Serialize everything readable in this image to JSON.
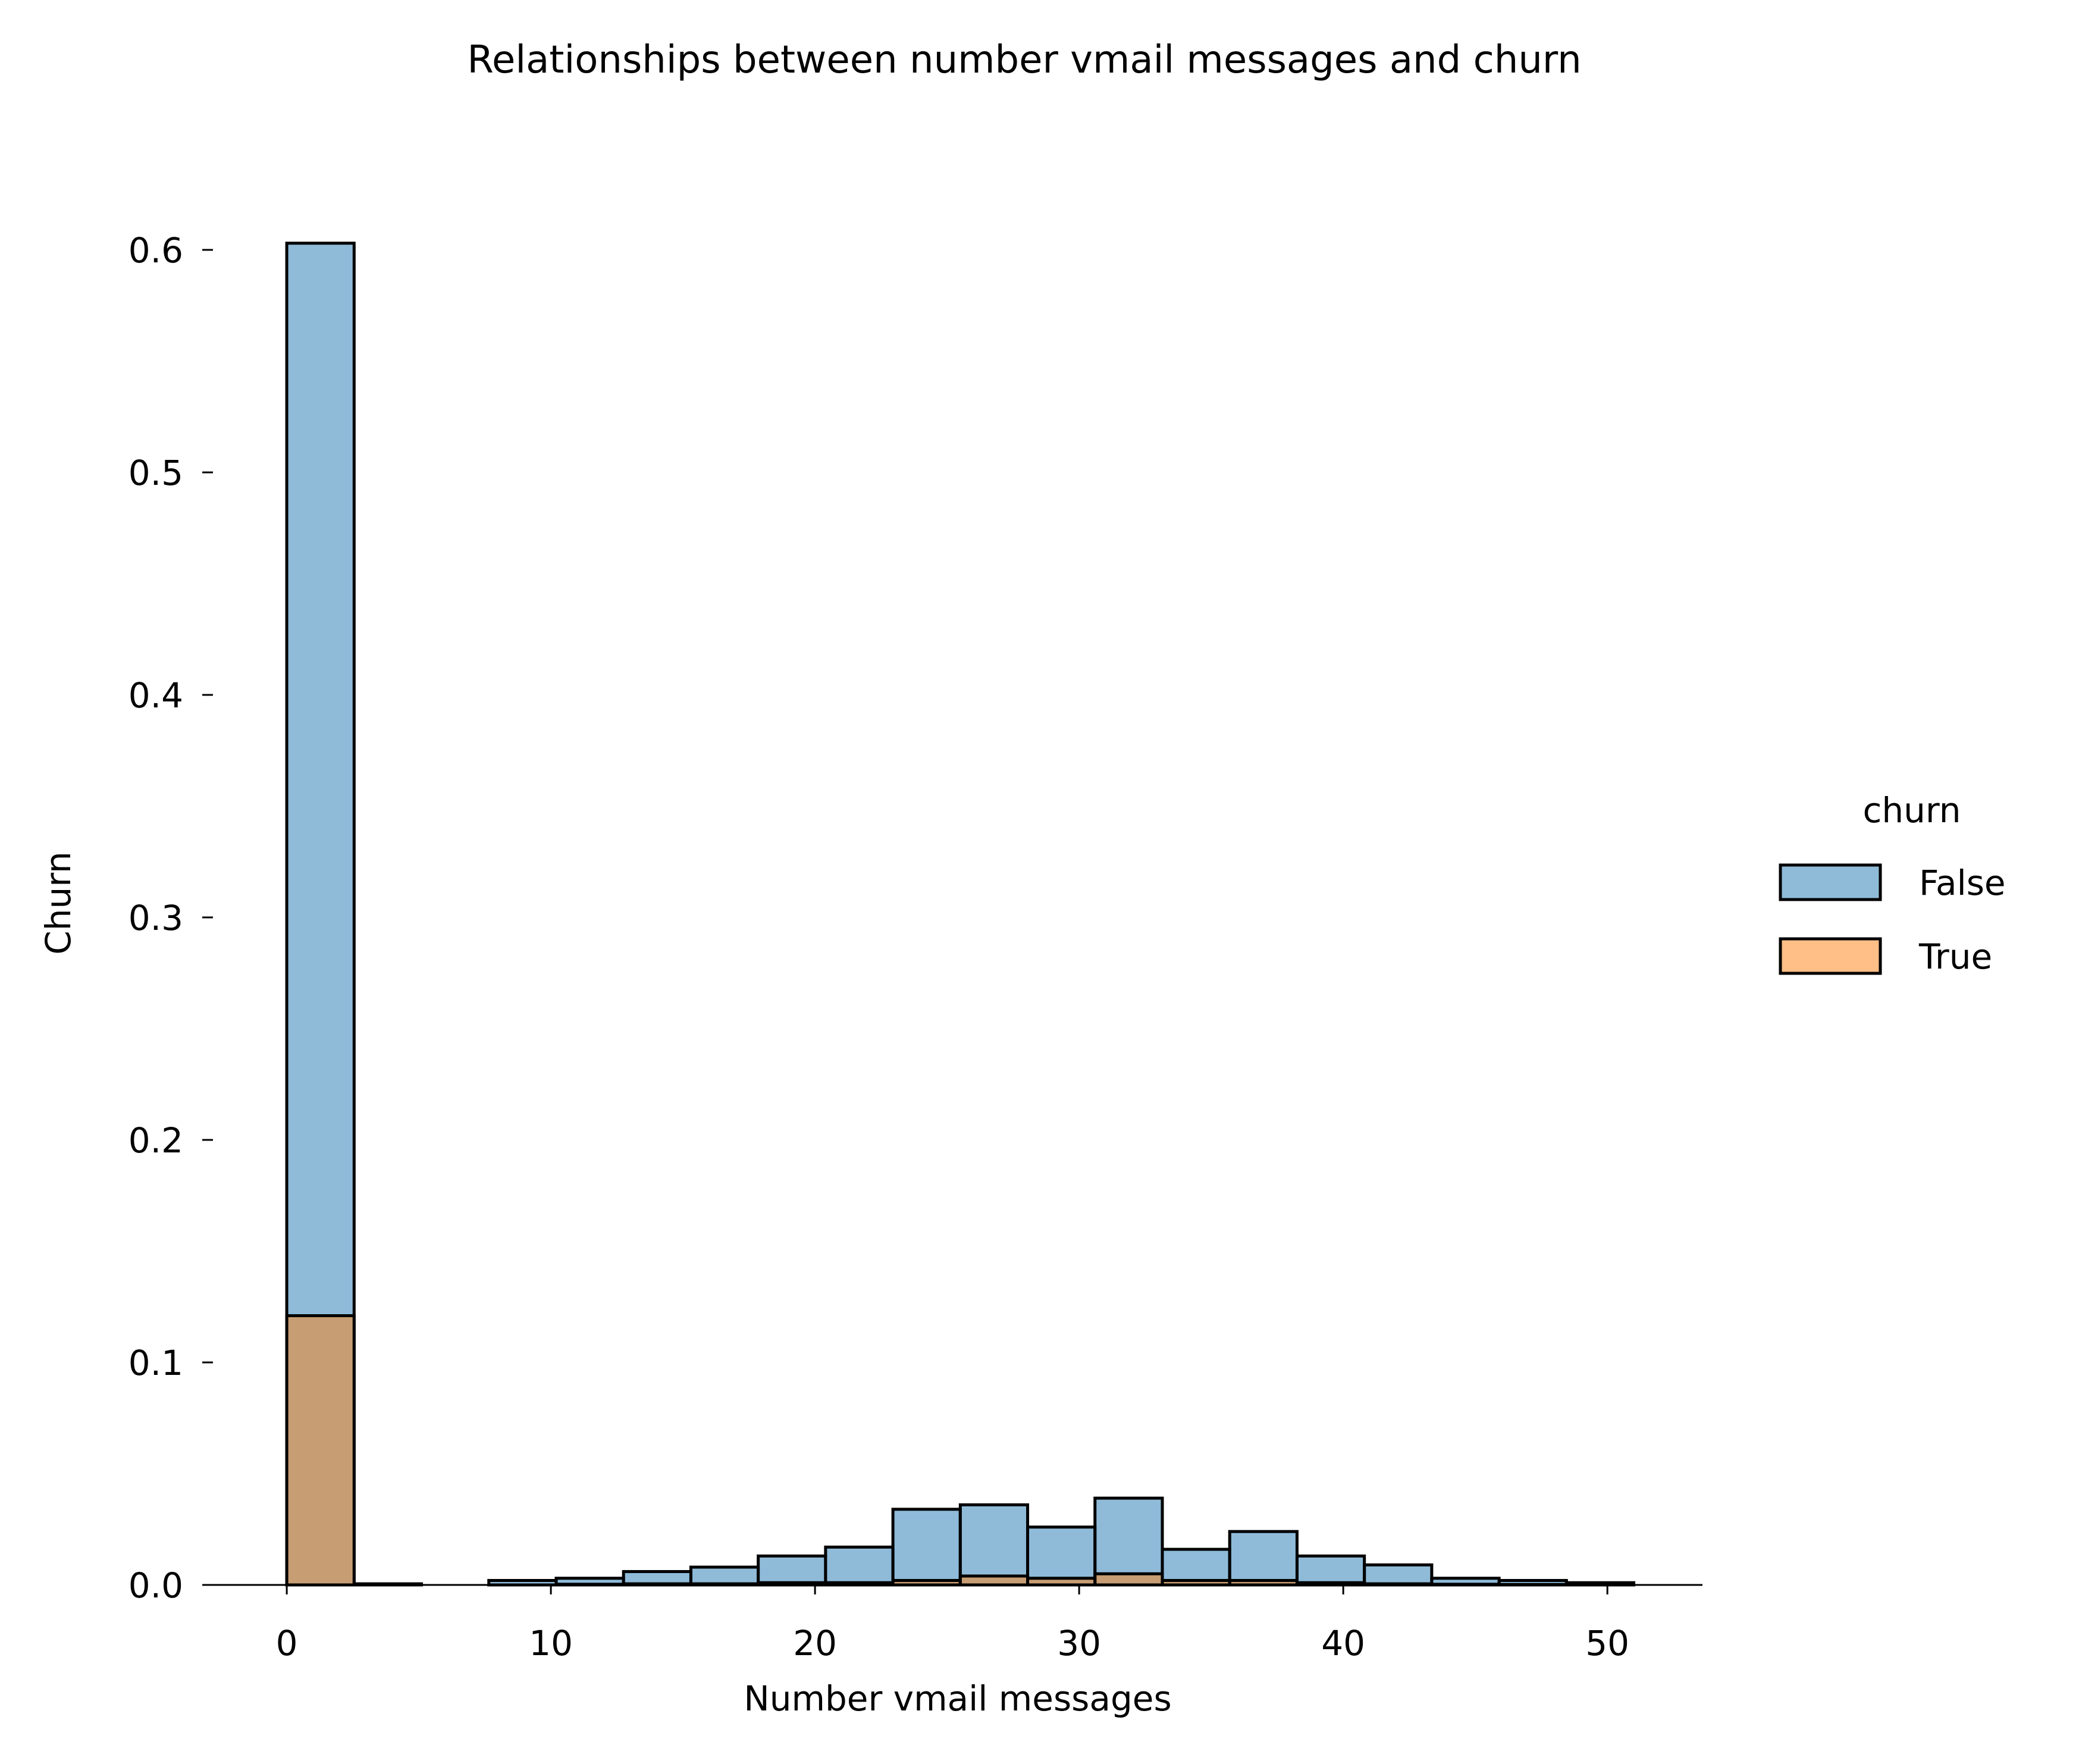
{
  "chart_data": {
    "type": "histogram",
    "title": "Relationships between number vmail messages and churn",
    "xlabel": "Number vmail messages",
    "ylabel": "Churn",
    "xlim": [
      -3.2,
      53.6
    ],
    "ylim": [
      0,
      0.6
    ],
    "xticks": [
      0,
      10,
      20,
      30,
      40,
      50
    ],
    "xtick_labels": [
      "0",
      "10",
      "20",
      "30",
      "40",
      "50"
    ],
    "yticks": [
      0.0,
      0.1,
      0.2,
      0.3,
      0.4,
      0.5,
      0.6
    ],
    "ytick_labels": [
      "0.0",
      "0.1",
      "0.2",
      "0.3",
      "0.4",
      "0.5",
      "0.6"
    ],
    "bin_edges": [
      0,
      2.55,
      5.1,
      7.65,
      10.2,
      12.75,
      15.3,
      17.85,
      20.4,
      22.95,
      25.5,
      28.05,
      30.6,
      33.15,
      35.7,
      38.25,
      40.8,
      43.35,
      45.9,
      48.45,
      51.0
    ],
    "series": [
      {
        "name": "False",
        "color": "#1f77b4",
        "values": [
          0.603,
          0.0005,
          0.0,
          0.002,
          0.003,
          0.006,
          0.008,
          0.013,
          0.017,
          0.034,
          0.036,
          0.026,
          0.039,
          0.016,
          0.024,
          0.013,
          0.009,
          0.003,
          0.002,
          0.001
        ]
      },
      {
        "name": "True",
        "color": "#ff7f0e",
        "values": [
          0.121,
          0.0,
          0.0,
          0.0,
          0.0003,
          0.0005,
          0.0005,
          0.001,
          0.001,
          0.002,
          0.004,
          0.003,
          0.005,
          0.002,
          0.002,
          0.001,
          0.0005,
          0.0003,
          0.0002,
          0.0
        ]
      }
    ],
    "legend": {
      "title": "churn",
      "position": "center-right",
      "entries": [
        "False",
        "True"
      ]
    },
    "grid": false
  }
}
